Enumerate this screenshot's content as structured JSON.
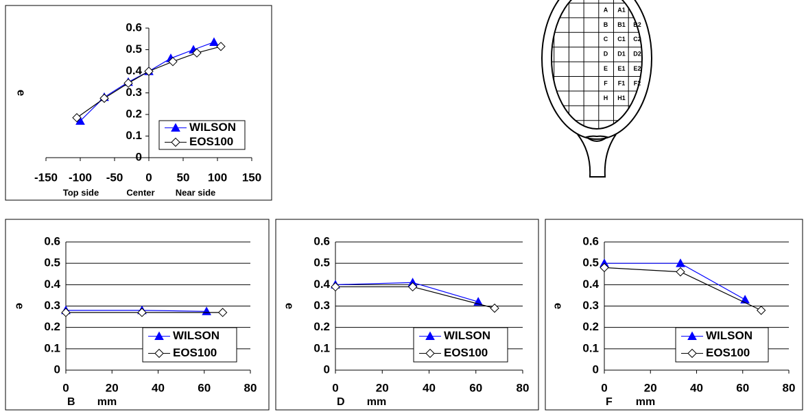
{
  "chart_data": [
    {
      "type": "line",
      "ylabel": "e",
      "xlabel_parts": [
        "Top side",
        "Center",
        "Near side"
      ],
      "xlim": [
        -150,
        150
      ],
      "xticks": [
        -150,
        -100,
        -50,
        0,
        50,
        100,
        150
      ],
      "ylim": [
        0,
        0.6
      ],
      "yticks": [
        0,
        0.1,
        0.2,
        0.3,
        0.4,
        0.5,
        0.6
      ],
      "grid": false,
      "legend": "lower right",
      "series": [
        {
          "name": "WILSON",
          "color": "#0000ff",
          "marker": "triangle",
          "x": [
            -100,
            -65,
            -30,
            0,
            32,
            65,
            95
          ],
          "values": [
            0.17,
            0.28,
            0.35,
            0.4,
            0.46,
            0.5,
            0.535
          ]
        },
        {
          "name": "EOS100",
          "color": "#000000",
          "marker": "diamond",
          "x": [
            -105,
            -65,
            -30,
            0,
            35,
            70,
            105
          ],
          "values": [
            0.185,
            0.275,
            0.345,
            0.4,
            0.445,
            0.485,
            0.515
          ]
        }
      ]
    },
    {
      "type": "line",
      "ylabel": "e",
      "xlabel_parts": [
        "B",
        "mm"
      ],
      "xlim": [
        0,
        80
      ],
      "xticks": [
        0,
        20,
        40,
        60,
        80
      ],
      "ylim": [
        0,
        0.6
      ],
      "yticks": [
        0,
        0.1,
        0.2,
        0.3,
        0.4,
        0.5,
        0.6
      ],
      "grid": true,
      "legend": "lower right",
      "series": [
        {
          "name": "WILSON",
          "color": "#0000ff",
          "marker": "triangle",
          "x": [
            0,
            33,
            61
          ],
          "values": [
            0.28,
            0.28,
            0.275
          ]
        },
        {
          "name": "EOS100",
          "color": "#000000",
          "marker": "diamond",
          "x": [
            0,
            33,
            68
          ],
          "values": [
            0.27,
            0.27,
            0.27
          ]
        }
      ]
    },
    {
      "type": "line",
      "ylabel": "e",
      "xlabel_parts": [
        "D",
        "mm"
      ],
      "xlim": [
        0,
        80
      ],
      "xticks": [
        0,
        20,
        40,
        60,
        80
      ],
      "ylim": [
        0,
        0.6
      ],
      "yticks": [
        0,
        0.1,
        0.2,
        0.3,
        0.4,
        0.5,
        0.6
      ],
      "grid": true,
      "legend": "lower right",
      "series": [
        {
          "name": "WILSON",
          "color": "#0000ff",
          "marker": "triangle",
          "x": [
            0,
            33,
            61
          ],
          "values": [
            0.4,
            0.41,
            0.32
          ]
        },
        {
          "name": "EOS100",
          "color": "#000000",
          "marker": "diamond",
          "x": [
            0,
            33,
            68
          ],
          "values": [
            0.39,
            0.39,
            0.29
          ]
        }
      ]
    },
    {
      "type": "line",
      "ylabel": "e",
      "xlabel_parts": [
        "F",
        "mm"
      ],
      "xlim": [
        0,
        80
      ],
      "xticks": [
        0,
        20,
        40,
        60,
        80
      ],
      "ylim": [
        0,
        0.6
      ],
      "yticks": [
        0,
        0.1,
        0.2,
        0.3,
        0.4,
        0.5,
        0.6
      ],
      "grid": true,
      "legend": "lower right",
      "series": [
        {
          "name": "WILSON",
          "color": "#0000ff",
          "marker": "triangle",
          "x": [
            0,
            33,
            61
          ],
          "values": [
            0.5,
            0.5,
            0.33
          ]
        },
        {
          "name": "EOS100",
          "color": "#000000",
          "marker": "diamond",
          "x": [
            0,
            33,
            68
          ],
          "values": [
            0.48,
            0.46,
            0.28
          ]
        }
      ]
    }
  ],
  "diagram": {
    "rows": [
      [
        "A",
        "A1"
      ],
      [
        "B",
        "B1",
        "B2"
      ],
      [
        "C",
        "C1",
        "C2"
      ],
      [
        "D",
        "D1",
        "D2"
      ],
      [
        "E",
        "E1",
        "E2"
      ],
      [
        "F",
        "F1",
        "F2"
      ],
      [
        "H",
        "H1"
      ]
    ]
  }
}
